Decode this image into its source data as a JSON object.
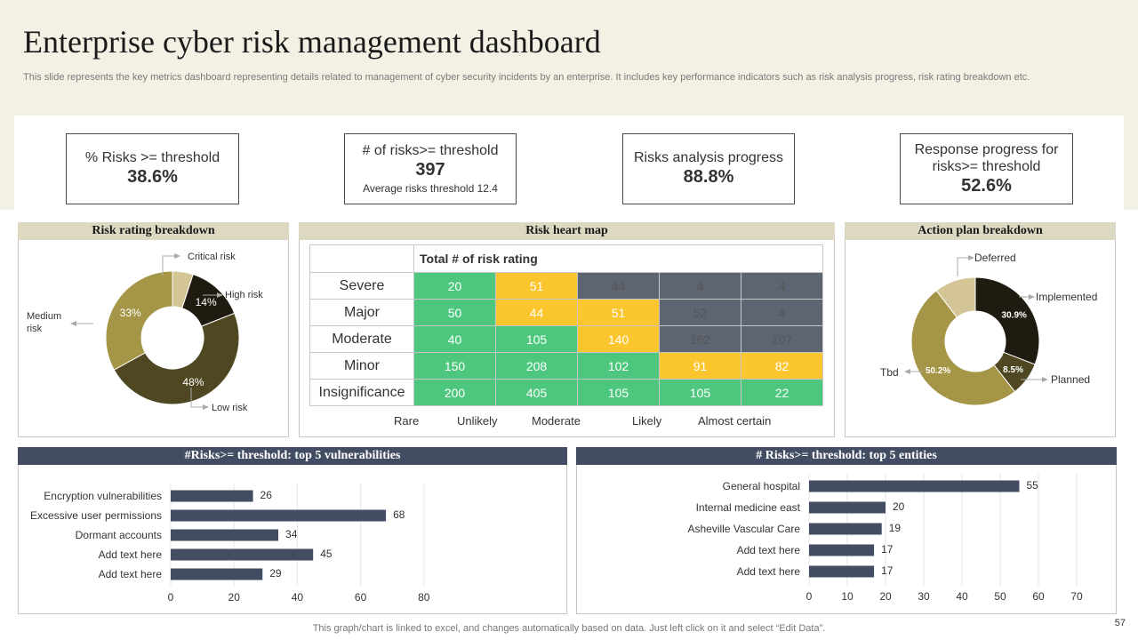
{
  "page": {
    "title": "Enterprise cyber risk management dashboard",
    "subtitle": "This slide represents the key metrics dashboard representing details related to management of cyber security incidents by an enterprise. It includes key performance indicators such as risk analysis progress, risk rating breakdown etc.",
    "footer": "This graph/chart is linked to excel,  and changes automatically based on data. Just left click on it and select “Edit Data”.",
    "page_number": "57"
  },
  "kpis": [
    {
      "label": "% Risks >= threshold",
      "value": "38.6%"
    },
    {
      "label": "# of risks>= threshold",
      "value": "397",
      "sub": "Average  risks threshold 12.4"
    },
    {
      "label": "Risks analysis progress",
      "value": "88.8%"
    },
    {
      "label_line1": "Response progress for",
      "label_line2": "risks>= threshold",
      "value": "52.6%"
    }
  ],
  "panels": {
    "risk_rating": "Risk rating  breakdown",
    "heat_map": "Risk heart map",
    "action_plan": "Action plan breakdown",
    "vulnerabilities": "#Risks>= threshold:  top 5 vulnerabilities",
    "entities": "# Risks>= threshold:  top 5 entities"
  },
  "heat_map": {
    "header": "Total # of risk  rating",
    "rows": [
      {
        "label": "Severe",
        "cells": [
          "20",
          "51",
          "44",
          "4",
          "4"
        ],
        "colors": [
          "g",
          "y",
          "s",
          "s",
          "s"
        ]
      },
      {
        "label": "Major",
        "cells": [
          "50",
          "44",
          "51",
          "52",
          "4"
        ],
        "colors": [
          "g",
          "y",
          "y",
          "s",
          "s"
        ]
      },
      {
        "label": "Moderate",
        "cells": [
          "40",
          "105",
          "140",
          "162",
          "107"
        ],
        "colors": [
          "g",
          "g",
          "y",
          "s",
          "s"
        ]
      },
      {
        "label": "Minor",
        "cells": [
          "150",
          "208",
          "102",
          "91",
          "82"
        ],
        "colors": [
          "g",
          "g",
          "g",
          "y",
          "y"
        ]
      },
      {
        "label": "Insignificance",
        "cells": [
          "200",
          "405",
          "105",
          "105",
          "22"
        ],
        "colors": [
          "g",
          "g",
          "g",
          "g",
          "g"
        ]
      }
    ],
    "columns": [
      "Rare",
      "Unlikely",
      "Moderate",
      "Likely",
      "Almost certain"
    ],
    "palette": {
      "g": "#4dc77e",
      "y": "#fbc52d",
      "s": "#5d6572"
    }
  },
  "chart_data": [
    {
      "type": "pie",
      "title": "Risk rating  breakdown",
      "variant": "donut",
      "slices": [
        {
          "name": "Critical risk",
          "value": 5,
          "label": "",
          "color": "#d3c596"
        },
        {
          "name": "High risk",
          "value": 14,
          "label": "14%",
          "color": "#201b10"
        },
        {
          "name": "Low risk",
          "value": 48,
          "label": "48%",
          "color": "#4e4722"
        },
        {
          "name": "Medium risk",
          "value": 33,
          "label": "33%",
          "color": "#a49646"
        }
      ],
      "callouts": [
        "Critical risk",
        "High risk",
        "Low risk",
        "Medium",
        "risk"
      ]
    },
    {
      "type": "pie",
      "title": "Action plan breakdown",
      "variant": "donut",
      "slices": [
        {
          "name": "Implemented",
          "value": 30.9,
          "label": "30.9%",
          "color": "#201b10"
        },
        {
          "name": "Planned",
          "value": 8.5,
          "label": "8.5%",
          "color": "#4e4722"
        },
        {
          "name": "Tbd",
          "value": 50.2,
          "label": "50.2%",
          "color": "#a49646"
        },
        {
          "name": "Deferred",
          "value": 10.4,
          "label": "",
          "color": "#d3c596"
        }
      ]
    },
    {
      "type": "bar",
      "orientation": "horizontal",
      "title": "#Risks>= threshold:  top 5 vulnerabilities",
      "categories": [
        "Encryption vulnerabilities",
        "Excessive user permissions",
        "Dormant accounts",
        "Add text here",
        "Add text here"
      ],
      "values": [
        26,
        68,
        34,
        45,
        29
      ],
      "xlim": [
        0,
        80
      ],
      "ticks": [
        0,
        20,
        40,
        60,
        80
      ],
      "color": "#424d63"
    },
    {
      "type": "bar",
      "orientation": "horizontal",
      "title": "# Risks>= threshold:  top 5 entities",
      "categories": [
        "General hospital",
        "Internal medicine east",
        "Asheville Vascular Care",
        "Add text here",
        "Add text here"
      ],
      "values": [
        55,
        20,
        19,
        17,
        17
      ],
      "xlim": [
        0,
        70
      ],
      "ticks": [
        0,
        10,
        20,
        30,
        40,
        50,
        60,
        70
      ],
      "color": "#424d63"
    }
  ]
}
